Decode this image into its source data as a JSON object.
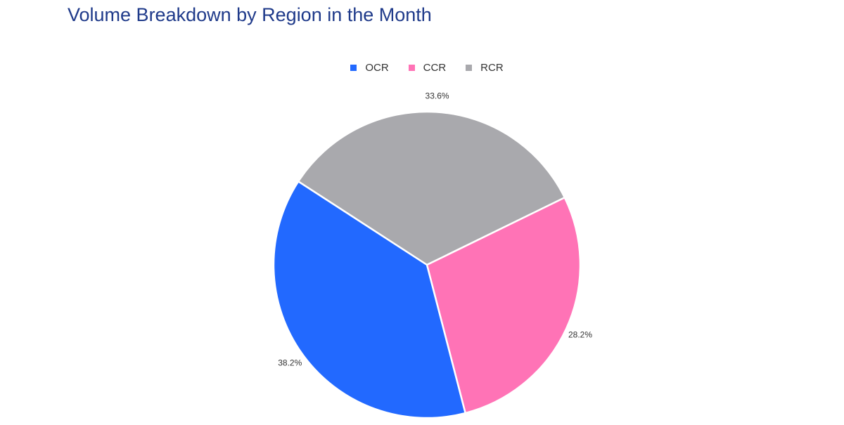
{
  "title": "Volume Breakdown by Region in the Month",
  "chart_data": {
    "type": "pie",
    "title": "Volume Breakdown by Region in the Month",
    "legend_position": "top-center",
    "slices": [
      {
        "label": "RCR",
        "value": 33.6,
        "display": "33.6%",
        "color": "#a9a9ad"
      },
      {
        "label": "CCR",
        "value": 28.2,
        "display": "28.2%",
        "color": "#ff73b6"
      },
      {
        "label": "OCR",
        "value": 38.2,
        "display": "38.2%",
        "color": "#2269ff"
      }
    ],
    "legend": [
      {
        "label": "OCR",
        "color": "#2269ff"
      },
      {
        "label": "CCR",
        "color": "#ff73b6"
      },
      {
        "label": "RCR",
        "color": "#a9a9ad"
      }
    ]
  }
}
